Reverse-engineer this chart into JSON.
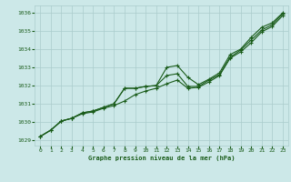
{
  "title": "Graphe pression niveau de la mer (hPa)",
  "background_color": "#cce8e8",
  "grid_color": "#aacccc",
  "line_color": "#1a5c1a",
  "xlim": [
    -0.5,
    23.5
  ],
  "ylim": [
    1028.7,
    1036.4
  ],
  "yticks": [
    1029,
    1030,
    1031,
    1032,
    1033,
    1034,
    1035,
    1036
  ],
  "xticks": [
    0,
    1,
    2,
    3,
    4,
    5,
    6,
    7,
    8,
    9,
    10,
    11,
    12,
    13,
    14,
    15,
    16,
    17,
    18,
    19,
    20,
    21,
    22,
    23
  ],
  "line1": [
    1029.2,
    1029.55,
    1030.05,
    1030.2,
    1030.45,
    1030.55,
    1030.75,
    1030.9,
    1031.15,
    1031.5,
    1031.7,
    1031.85,
    1032.1,
    1032.3,
    1031.85,
    1031.9,
    1032.2,
    1032.55,
    1033.5,
    1033.85,
    1034.35,
    1034.95,
    1035.25,
    1035.85
  ],
  "line2": [
    1029.2,
    1029.55,
    1030.05,
    1030.2,
    1030.5,
    1030.6,
    1030.8,
    1031.0,
    1031.85,
    1031.85,
    1031.95,
    1032.0,
    1032.55,
    1032.65,
    1031.95,
    1031.95,
    1032.3,
    1032.6,
    1033.55,
    1033.95,
    1034.5,
    1035.05,
    1035.35,
    1035.95
  ],
  "line3": [
    1029.2,
    1029.55,
    1030.05,
    1030.2,
    1030.5,
    1030.6,
    1030.8,
    1031.0,
    1031.85,
    1031.85,
    1031.95,
    1032.0,
    1033.0,
    1033.1,
    1032.45,
    1032.05,
    1032.35,
    1032.7,
    1033.7,
    1034.0,
    1034.65,
    1035.2,
    1035.45,
    1036.0
  ]
}
